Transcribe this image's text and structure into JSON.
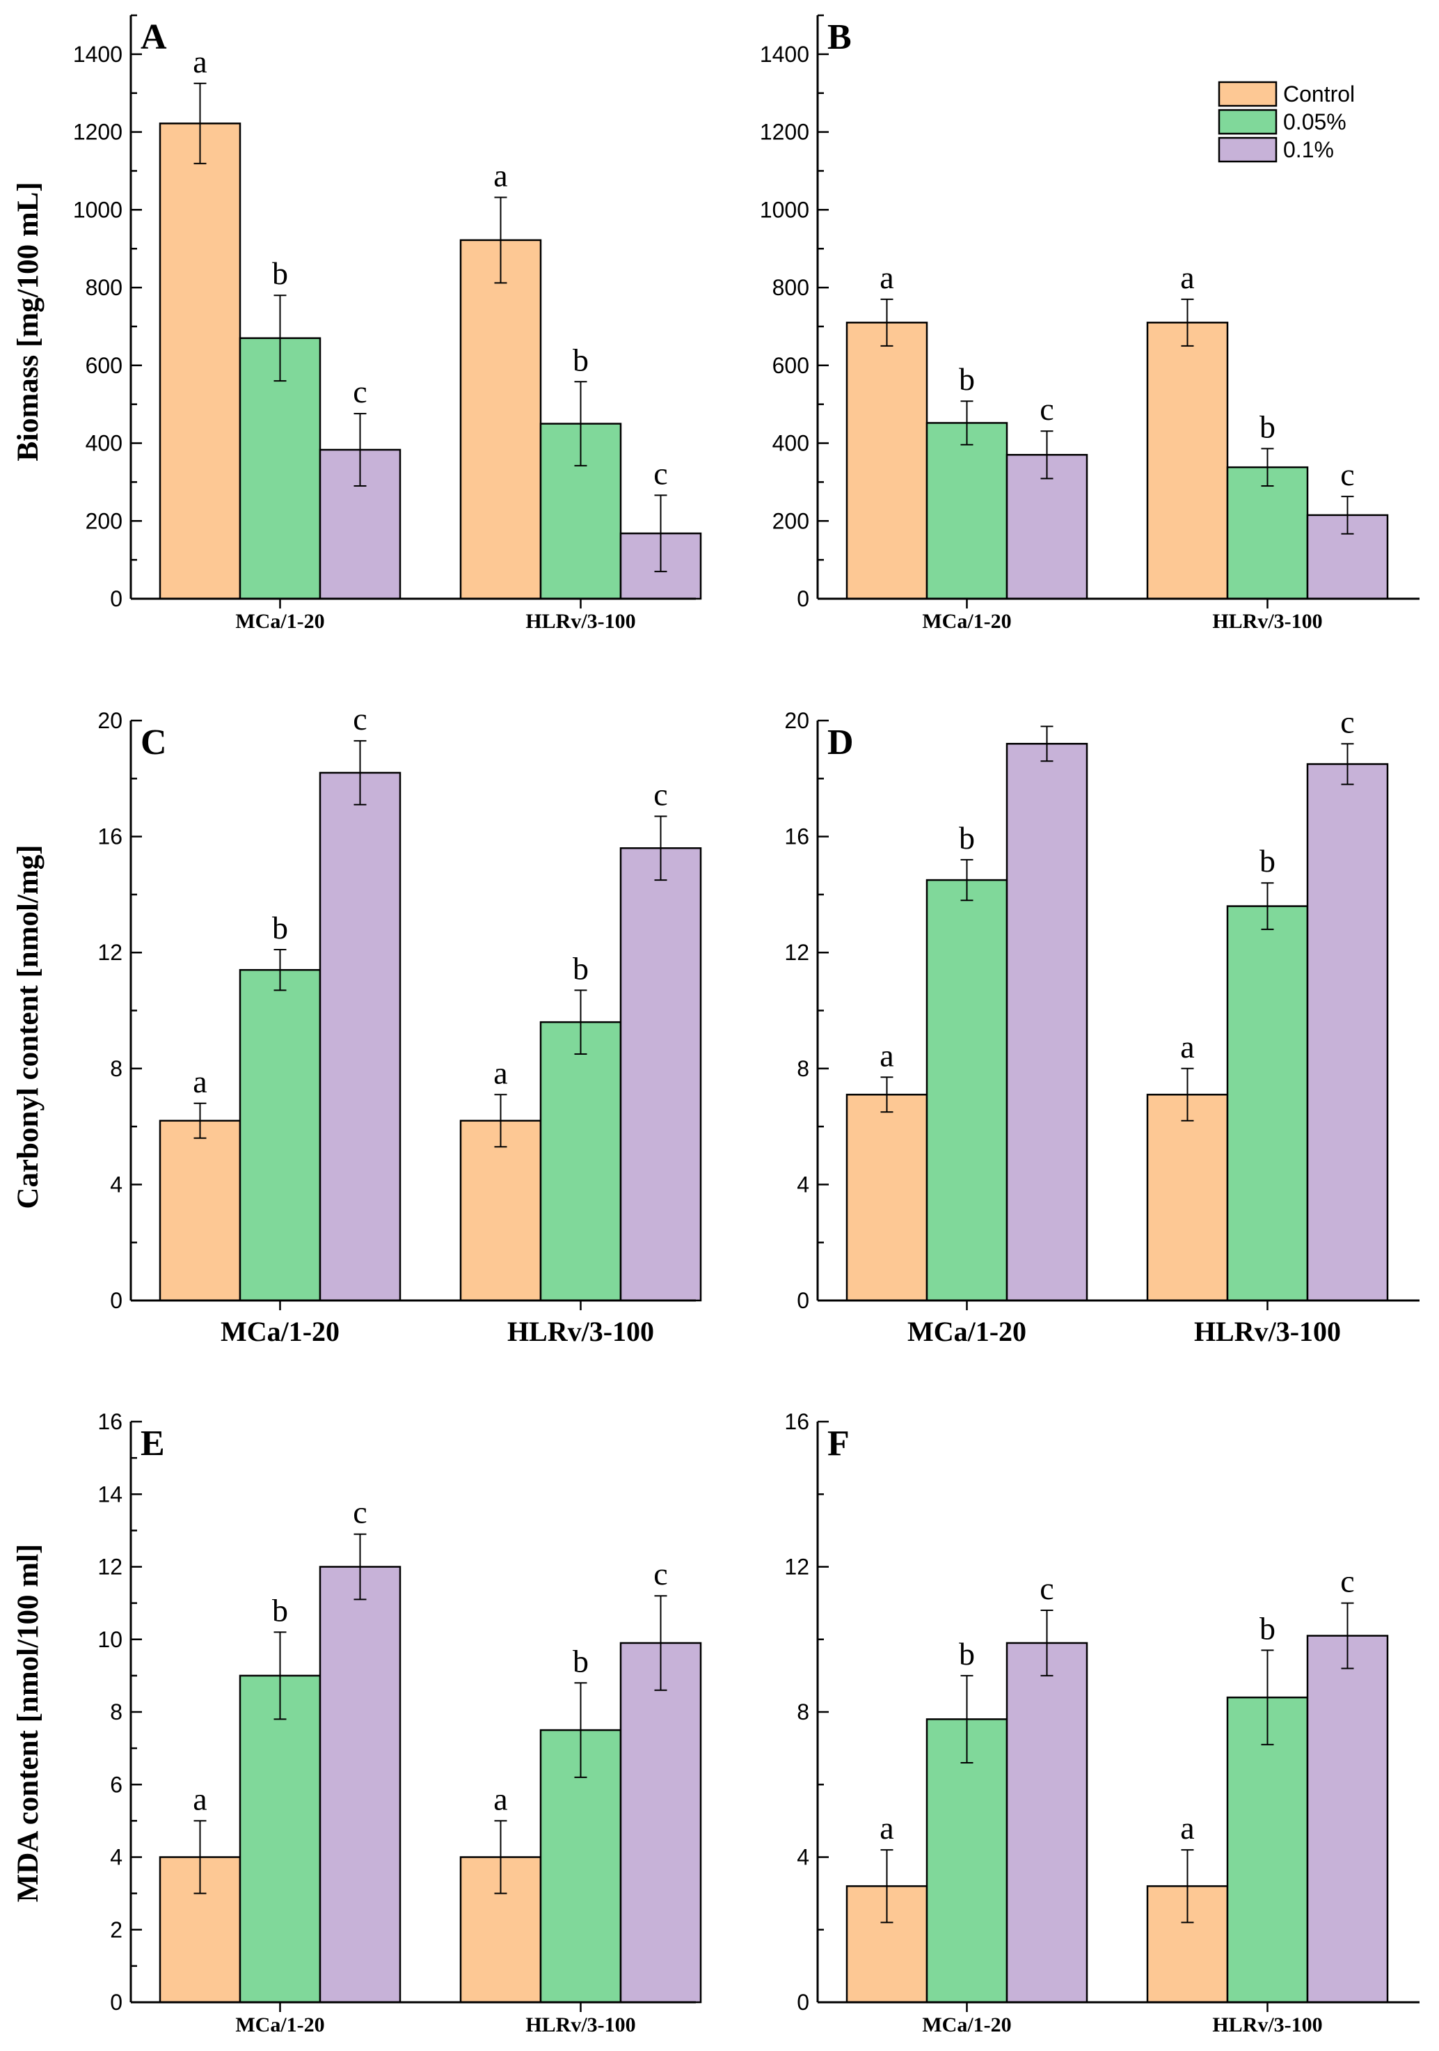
{
  "figure": {
    "colors": {
      "Control": "#fdc894",
      "0.05%": "#80d89a",
      "0.1%": "#c7b2d8",
      "axis": "#000000"
    },
    "legend": {
      "entries": [
        "Control",
        "0.05%",
        "0.1%"
      ],
      "placement": "top-right of panel B"
    },
    "y_axis_titles": {
      "row1": "Biomass [mg/100 mL]",
      "row2": "Carbonyl content [nmol/mg]",
      "row3": "MDA content [nmol/100 ml]"
    }
  },
  "chart_data": [
    {
      "panel": "A",
      "type": "bar",
      "categories": [
        "MCa/1-20",
        "HLRv/3-100"
      ],
      "ylabel": "Biomass [mg/100 mL]",
      "ylim": [
        0,
        1500
      ],
      "yticks": [
        0,
        200,
        400,
        600,
        800,
        1000,
        1200,
        1400
      ],
      "series": [
        {
          "name": "Control",
          "values": [
            1222,
            922
          ],
          "errors": [
            103,
            110
          ],
          "letters": [
            "a",
            "a"
          ]
        },
        {
          "name": "0.05%",
          "values": [
            670,
            450
          ],
          "errors": [
            110,
            108
          ],
          "letters": [
            "b",
            "b"
          ]
        },
        {
          "name": "0.1%",
          "values": [
            383,
            168
          ],
          "errors": [
            93,
            98
          ],
          "letters": [
            "c",
            "c"
          ]
        }
      ]
    },
    {
      "panel": "B",
      "type": "bar",
      "categories": [
        "MCa/1-20",
        "HLRv/3-100"
      ],
      "ylabel": "",
      "ylim": [
        0,
        1500
      ],
      "yticks": [
        0,
        200,
        400,
        600,
        800,
        1000,
        1200,
        1400
      ],
      "series": [
        {
          "name": "Control",
          "values": [
            710,
            710
          ],
          "errors": [
            60,
            60
          ],
          "letters": [
            "a",
            "a"
          ]
        },
        {
          "name": "0.05%",
          "values": [
            452,
            338
          ],
          "errors": [
            56,
            48
          ],
          "letters": [
            "b",
            "b"
          ]
        },
        {
          "name": "0.1%",
          "values": [
            370,
            215
          ],
          "errors": [
            61,
            48
          ],
          "letters": [
            "c",
            "c"
          ]
        }
      ]
    },
    {
      "panel": "C",
      "type": "bar",
      "categories": [
        "MCa/1-20",
        "HLRv/3-100"
      ],
      "ylabel": "Carbonyl content [nmol/mg]",
      "ylim": [
        0,
        20
      ],
      "yticks": [
        0,
        4,
        8,
        12,
        16,
        20
      ],
      "series": [
        {
          "name": "Control",
          "values": [
            6.2,
            6.2
          ],
          "errors": [
            0.6,
            0.9
          ],
          "letters": [
            "a",
            "a"
          ]
        },
        {
          "name": "0.05%",
          "values": [
            11.4,
            9.6
          ],
          "errors": [
            0.7,
            1.1
          ],
          "letters": [
            "b",
            "b"
          ]
        },
        {
          "name": "0.1%",
          "values": [
            18.2,
            15.6
          ],
          "errors": [
            1.1,
            1.1
          ],
          "letters": [
            "c",
            "c"
          ]
        }
      ]
    },
    {
      "panel": "D",
      "type": "bar",
      "categories": [
        "MCa/1-20",
        "HLRv/3-100"
      ],
      "ylabel": "",
      "ylim": [
        0,
        20
      ],
      "yticks": [
        0,
        4,
        8,
        12,
        16,
        20
      ],
      "series": [
        {
          "name": "Control",
          "values": [
            7.1,
            7.1
          ],
          "errors": [
            0.6,
            0.9
          ],
          "letters": [
            "a",
            "a"
          ]
        },
        {
          "name": "0.05%",
          "values": [
            14.5,
            13.6
          ],
          "errors": [
            0.7,
            0.8
          ],
          "letters": [
            "b",
            "b"
          ]
        },
        {
          "name": "0.1%",
          "values": [
            19.2,
            18.5
          ],
          "errors": [
            0.6,
            0.7
          ],
          "letters": [
            "",
            "c"
          ]
        }
      ]
    },
    {
      "panel": "E",
      "type": "bar",
      "categories": [
        "MCa/1-20",
        "HLRv/3-100"
      ],
      "ylabel": "MDA content [nmol/100 ml]",
      "ylim": [
        0,
        16
      ],
      "yticks": [
        0,
        2,
        4,
        6,
        8,
        10,
        12,
        14,
        16
      ],
      "series": [
        {
          "name": "Control",
          "values": [
            4.0,
            4.0
          ],
          "errors": [
            1.0,
            1.0
          ],
          "letters": [
            "a",
            "a"
          ]
        },
        {
          "name": "0.05%",
          "values": [
            9.0,
            7.5
          ],
          "errors": [
            1.2,
            1.3
          ],
          "letters": [
            "b",
            "b"
          ]
        },
        {
          "name": "0.1%",
          "values": [
            12.0,
            9.9
          ],
          "errors": [
            0.9,
            1.3
          ],
          "letters": [
            "c",
            "c"
          ]
        }
      ]
    },
    {
      "panel": "F",
      "type": "bar",
      "categories": [
        "MCa/1-20",
        "HLRv/3-100"
      ],
      "ylabel": "",
      "ylim": [
        0,
        16
      ],
      "yticks": [
        0,
        4,
        8,
        12,
        16
      ],
      "series": [
        {
          "name": "Control",
          "values": [
            3.2,
            3.2
          ],
          "errors": [
            1.0,
            1.0
          ],
          "letters": [
            "a",
            "a"
          ]
        },
        {
          "name": "0.05%",
          "values": [
            7.8,
            8.4
          ],
          "errors": [
            1.2,
            1.3
          ],
          "letters": [
            "b",
            "b"
          ]
        },
        {
          "name": "0.1%",
          "values": [
            9.9,
            10.1
          ],
          "errors": [
            0.9,
            0.9
          ],
          "letters": [
            "c",
            "c"
          ]
        }
      ]
    }
  ]
}
